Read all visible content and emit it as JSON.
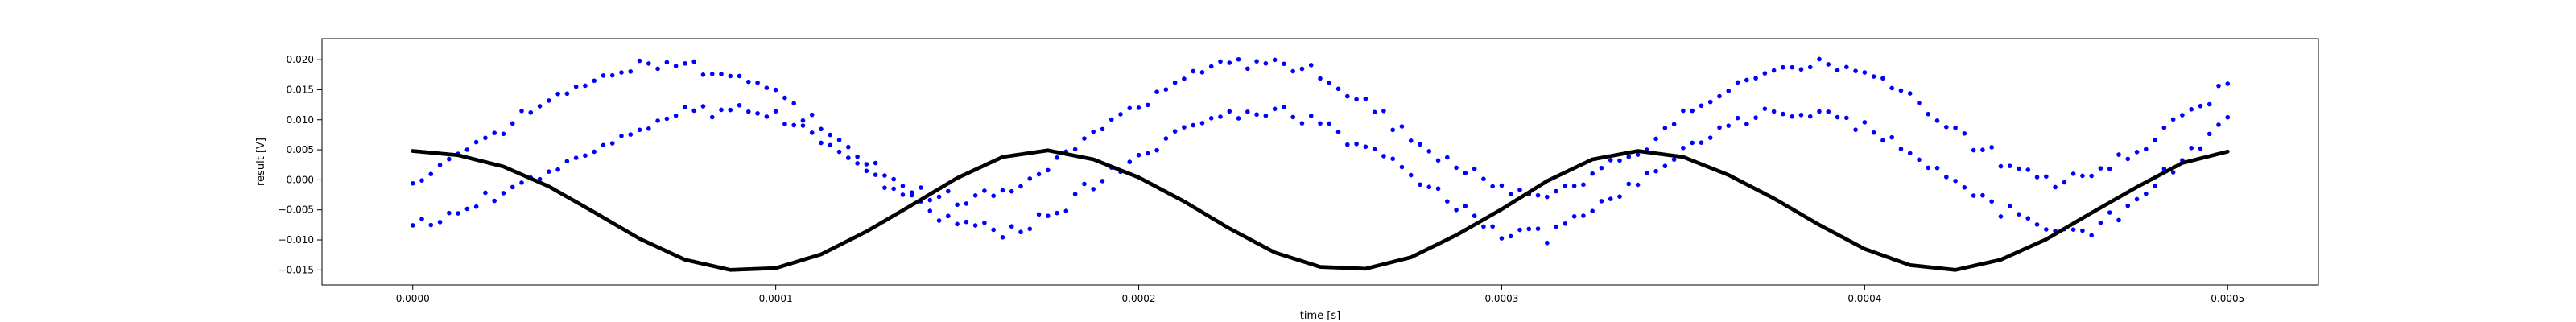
{
  "chart_data": {
    "type": "scatter",
    "title": "",
    "xlabel": "time [s]",
    "ylabel": "result [V]",
    "xlim": [
      -2.5e-05,
      0.000525
    ],
    "ylim": [
      -0.0175,
      0.0235
    ],
    "xticks": [
      0.0,
      0.0001,
      0.0002,
      0.0003,
      0.0004,
      0.0005
    ],
    "xtick_labels": [
      "0.0000",
      "0.0001",
      "0.0002",
      "0.0003",
      "0.0004",
      "0.0005"
    ],
    "yticks": [
      -0.015,
      -0.01,
      -0.005,
      0.0,
      0.005,
      0.01,
      0.015,
      0.02
    ],
    "ytick_labels": [
      "−0.015",
      "−0.010",
      "−0.005",
      "0.000",
      "0.005",
      "0.010",
      "0.015",
      "0.020"
    ],
    "grid": false,
    "legend": "none",
    "series": [
      {
        "color": "#0000ff",
        "marker": "dot",
        "x_start": 0.0,
        "x_end": 0.0005,
        "x": [
          0.0,
          1.25e-05,
          2.5e-05,
          3.75e-05,
          5e-05,
          6.25e-05,
          7.5e-05,
          8.75e-05,
          0.0001,
          0.0001125,
          0.000125,
          0.0001375,
          0.00015,
          0.0001625,
          0.000175,
          0.0001875,
          0.0002,
          0.0002125,
          0.000225,
          0.0002375,
          0.00025,
          0.0002625,
          0.000275,
          0.0002875,
          0.0003,
          0.0003125,
          0.000325,
          0.0003375,
          0.00035,
          0.0003625,
          0.000375,
          0.0003875,
          0.0004,
          0.0004125,
          0.000425,
          0.0004375,
          0.00045,
          0.0004625,
          0.000475,
          0.0004875,
          0.0005
        ],
        "y": [
          -0.008,
          -0.0055,
          -0.002,
          0.0015,
          0.005,
          0.0085,
          0.011,
          0.012,
          0.0105,
          0.007,
          0.002,
          -0.003,
          -0.0075,
          -0.009,
          -0.006,
          -0.001,
          0.004,
          0.008,
          0.011,
          0.0115,
          0.01,
          0.006,
          0.0005,
          -0.0045,
          -0.0085,
          -0.009,
          -0.005,
          0.0,
          0.005,
          0.009,
          0.0115,
          0.0115,
          0.009,
          0.005,
          -0.0005,
          -0.005,
          -0.0085,
          -0.008,
          -0.0035,
          0.003,
          0.0105
        ]
      },
      {
        "color": "#0000ff",
        "marker": "dot",
        "x": [
          0.0,
          1.25e-05,
          2.5e-05,
          3.75e-05,
          5e-05,
          6.25e-05,
          7.5e-05,
          8.75e-05,
          0.0001,
          0.0001125,
          0.000125,
          0.0001375,
          0.00015,
          0.0001625,
          0.000175,
          0.0001875,
          0.0002,
          0.0002125,
          0.000225,
          0.0002375,
          0.00025,
          0.0002625,
          0.000275,
          0.0002875,
          0.0003,
          0.0003125,
          0.000325,
          0.0003375,
          0.00035,
          0.0003625,
          0.000375,
          0.0003875,
          0.0004,
          0.0004125,
          0.000425,
          0.0004375,
          0.00045,
          0.0004625,
          0.000475,
          0.0004875,
          0.0005
        ],
        "y": [
          0.0,
          0.004,
          0.0085,
          0.013,
          0.0165,
          0.019,
          0.0195,
          0.018,
          0.014,
          0.0085,
          0.003,
          -0.0015,
          -0.0035,
          -0.002,
          0.002,
          0.008,
          0.013,
          0.017,
          0.0195,
          0.0195,
          0.017,
          0.0125,
          0.007,
          0.002,
          -0.0015,
          -0.0025,
          0.0,
          0.0045,
          0.0105,
          0.015,
          0.0185,
          0.0195,
          0.018,
          0.0135,
          0.008,
          0.003,
          0.0,
          0.0005,
          0.0045,
          0.0105,
          0.016
        ]
      },
      {
        "color": "#000000",
        "marker": "line-of-dots",
        "x": [
          0.0,
          1.25e-05,
          2.5e-05,
          3.75e-05,
          5e-05,
          6.25e-05,
          7.5e-05,
          8.75e-05,
          0.0001,
          0.0001125,
          0.000125,
          0.0001375,
          0.00015,
          0.0001625,
          0.000175,
          0.0001875,
          0.0002,
          0.0002125,
          0.000225,
          0.0002375,
          0.00025,
          0.0002625,
          0.000275,
          0.0002875,
          0.0003,
          0.0003125,
          0.000325,
          0.0003375,
          0.00035,
          0.0003625,
          0.000375,
          0.0003875,
          0.0004,
          0.0004125,
          0.000425,
          0.0004375,
          0.00045,
          0.0004625,
          0.000475,
          0.0004875,
          0.0005
        ],
        "y": [
          0.0048,
          0.0041,
          0.0022,
          -0.0011,
          -0.0054,
          -0.0098,
          -0.0133,
          -0.015,
          -0.0147,
          -0.0124,
          -0.0086,
          -0.0042,
          0.0003,
          0.0038,
          0.0049,
          0.0034,
          0.0004,
          -0.0036,
          -0.0081,
          -0.0121,
          -0.0145,
          -0.0148,
          -0.0129,
          -0.0092,
          -0.0049,
          -0.0002,
          0.0034,
          0.0048,
          0.0038,
          0.0008,
          -0.0031,
          -0.0075,
          -0.0115,
          -0.0142,
          -0.015,
          -0.0133,
          -0.0099,
          -0.0055,
          -0.0012,
          0.0028,
          0.0047
        ]
      }
    ]
  }
}
